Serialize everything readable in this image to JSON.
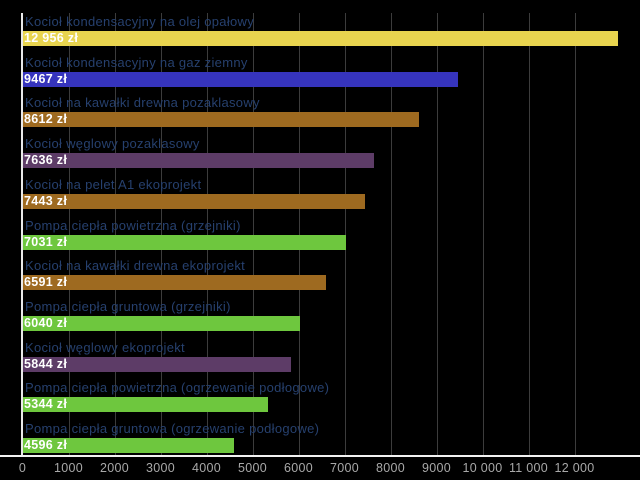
{
  "chart_data": {
    "type": "bar",
    "orientation": "horizontal",
    "title": "",
    "xlabel": "",
    "ylabel": "",
    "grid": true,
    "legend": false,
    "xlim": [
      0,
      12956
    ],
    "categories": [
      "Kocioł kondensacyjny na olej opałowy",
      "Kocioł kondensacyjny na gaz ziemny",
      "Kocioł na kawałki drewna pozaklasowy",
      "Kocioł węglowy pozaklasowy",
      "Kocioł na pelet A1 ekoprojekt",
      "Pompa ciepła powietrzna (grzejniki)",
      "Kocioł na kawałki drewna ekoprojekt",
      "Pompa ciepła gruntowa (grzejniki)",
      "Kocioł węglowy ekoprojekt",
      "Pompa ciepła powietrzna (ogrzewanie podłogowe)",
      "Pompa ciepła gruntowa (ogrzewanie podłogowe)"
    ],
    "values": [
      12956,
      9467,
      8612,
      7636,
      7443,
      7031,
      6591,
      6040,
      5844,
      5344,
      4596
    ],
    "value_labels": [
      "12 956 zł",
      "9467 zł",
      "8612 zł",
      "7636 zł",
      "7443 zł",
      "7031 zł",
      "6591 zł",
      "6040 zł",
      "5844 zł",
      "5344 zł",
      "4596 zł"
    ],
    "bar_colors": [
      "#e8d44f",
      "#3634bd",
      "#9e6a20",
      "#5d3c67",
      "#9e6a20",
      "#6ec73e",
      "#9e6a20",
      "#6ec73e",
      "#5d3c67",
      "#6ec73e",
      "#6ec73e"
    ],
    "x_ticks": [
      0,
      1000,
      2000,
      3000,
      4000,
      5000,
      6000,
      7000,
      8000,
      9000,
      10000,
      11000,
      12000
    ],
    "x_tick_labels": [
      "0",
      "1000",
      "2000",
      "3000",
      "4000",
      "5000",
      "6000",
      "7000",
      "8000",
      "9000",
      "10 000",
      "11 000",
      "12 000"
    ]
  },
  "style": {
    "background": "#000000",
    "category_label_color": "#26406e",
    "value_label_color": "#ffffff",
    "grid_color": "#3c3c3c",
    "zero_line_color": "#e9e9e9",
    "axis_line_color": "#f2f2f2",
    "tick_label_color": "#a8a8a8"
  }
}
